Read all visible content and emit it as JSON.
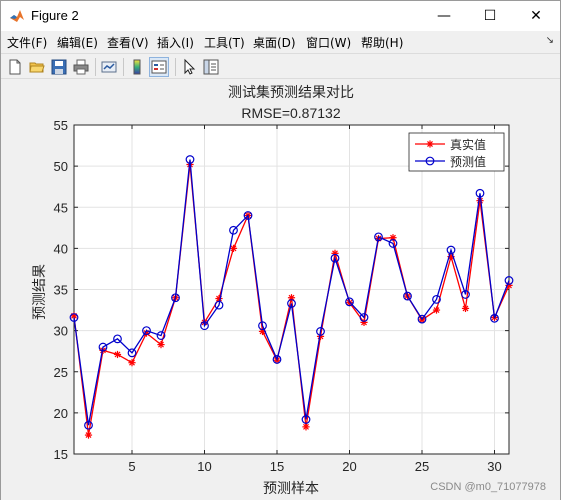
{
  "window": {
    "title": "Figure 2"
  },
  "controls": {
    "minimize": "—",
    "maximize": "☐",
    "close": "✕"
  },
  "menu": {
    "items": [
      "文件(F)",
      "编辑(E)",
      "查看(V)",
      "插入(I)",
      "工具(T)",
      "桌面(D)",
      "窗口(W)",
      "帮助(H)"
    ],
    "overflow": "↘"
  },
  "toolbar": {
    "icons": [
      "new-figure-icon",
      "open-file-icon",
      "save-icon",
      "print-icon",
      "link-plot-icon",
      "insert-colorbar-icon",
      "insert-legend-icon",
      "pointer-icon",
      "property-inspector-icon"
    ]
  },
  "chart_data": {
    "type": "line",
    "title": "测试集预测结果对比",
    "subtitle": "RMSE=0.87132",
    "xlabel": "预测样本",
    "ylabel": "预测结果",
    "xlim": [
      1,
      31
    ],
    "ylim": [
      15,
      55
    ],
    "xticks": [
      5,
      10,
      15,
      20,
      25,
      30
    ],
    "yticks": [
      15,
      20,
      25,
      30,
      35,
      40,
      45,
      50,
      55
    ],
    "grid": true,
    "legend_position": "top-right",
    "x": [
      1,
      2,
      3,
      4,
      5,
      6,
      7,
      8,
      9,
      10,
      11,
      12,
      13,
      14,
      15,
      16,
      17,
      18,
      19,
      20,
      21,
      22,
      23,
      24,
      25,
      26,
      27,
      28,
      29,
      30,
      31
    ],
    "series": [
      {
        "name": "真实值",
        "color": "#ff0000",
        "marker": "asterisk",
        "values": [
          31.8,
          17.3,
          27.6,
          27.1,
          26.1,
          29.7,
          28.3,
          34.0,
          50.2,
          31.0,
          33.9,
          40.0,
          44.0,
          29.9,
          26.4,
          34.0,
          18.3,
          29.3,
          39.4,
          33.4,
          31.0,
          41.2,
          41.3,
          34.2,
          31.3,
          32.5,
          39.0,
          32.7,
          45.8,
          31.6,
          35.5
        ]
      },
      {
        "name": "预测值",
        "color": "#0000cc",
        "marker": "circle",
        "values": [
          31.6,
          18.5,
          28.0,
          29.0,
          27.3,
          30.0,
          29.4,
          34.0,
          50.8,
          30.6,
          33.1,
          42.2,
          44.0,
          30.6,
          26.5,
          33.3,
          19.2,
          29.9,
          38.8,
          33.5,
          31.6,
          41.4,
          40.6,
          34.2,
          31.4,
          33.8,
          39.8,
          34.4,
          46.7,
          31.5,
          36.1
        ]
      }
    ]
  },
  "watermark": "CSDN @m0_71077978"
}
